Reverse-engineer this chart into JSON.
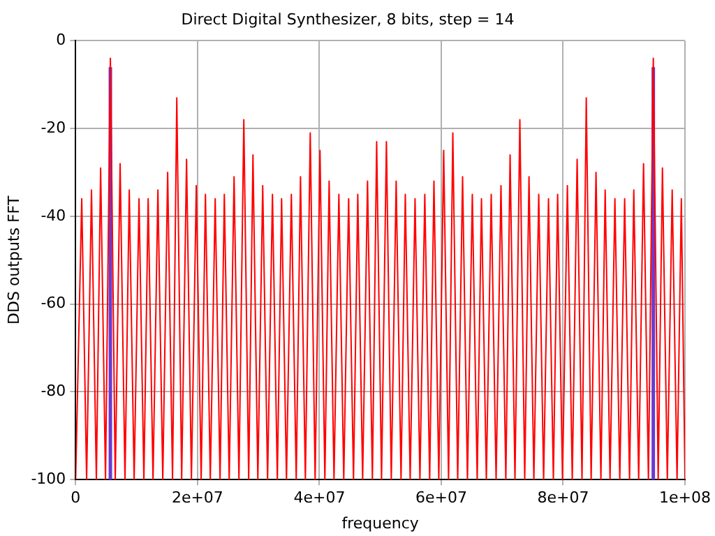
{
  "chart_data": {
    "type": "line",
    "title": "Direct Digital Synthesizer, 8 bits, step = 14",
    "xlabel": "frequency",
    "ylabel": "DDS outputs FFT",
    "xlim": [
      0,
      100000000
    ],
    "ylim": [
      -100,
      0
    ],
    "xticks": [
      0,
      {
        "value": 20000000,
        "label": "2e+07"
      },
      {
        "value": 40000000,
        "label": "4e+07"
      },
      {
        "value": 60000000,
        "label": "6e+07"
      },
      {
        "value": 80000000,
        "label": "8e+07"
      },
      {
        "value": 100000000,
        "label": "1e+08"
      }
    ],
    "yticks": [
      -100,
      -80,
      -60,
      -40,
      -20,
      0
    ],
    "grid": true,
    "legend": false,
    "marker": "none",
    "line_style": "solid",
    "series": [
      {
        "color": "#ff0000",
        "x": [
          0,
          1000000,
          1800000,
          2600000,
          3400000,
          4100000,
          4900000,
          5700000,
          6500000,
          7300000,
          8100000,
          8800000,
          9600000,
          10400000,
          11200000,
          11900000,
          12700000,
          13500000,
          14300000,
          15100000,
          15900000,
          16600000,
          17400000,
          18200000,
          19000000,
          19800000,
          20600000,
          21300000,
          22100000,
          22900000,
          23700000,
          24400000,
          25200000,
          26000000,
          26800000,
          27600000,
          28400000,
          29100000,
          29900000,
          30700000,
          31500000,
          32300000,
          33100000,
          33800000,
          34600000,
          35400000,
          36200000,
          36900000,
          37700000,
          38500000,
          39300000,
          40100000,
          40900000,
          41600000,
          42400000,
          43200000,
          44000000,
          44800000,
          45600000,
          46300000,
          47100000,
          47900000,
          48700000,
          49400000,
          50200000,
          51000000,
          51800000,
          52600000,
          53400000,
          54100000,
          54900000,
          55700000,
          56500000,
          57300000,
          58100000,
          58800000,
          59600000,
          60400000,
          61200000,
          61900000,
          62700000,
          63500000,
          64300000,
          65100000,
          65900000,
          66600000,
          67400000,
          68200000,
          69000000,
          69800000,
          70600000,
          71300000,
          72100000,
          72900000,
          73700000,
          74400000,
          75200000,
          76000000,
          76800000,
          77600000,
          78400000,
          79100000,
          79900000,
          80700000,
          81500000,
          82300000,
          83100000,
          83800000,
          84600000,
          85400000,
          86200000,
          86900000,
          87700000,
          88500000,
          89300000,
          90100000,
          90900000,
          91600000,
          92400000,
          93200000,
          94000000,
          94800000,
          95600000,
          96300000,
          97100000,
          97900000,
          98700000,
          99400000,
          100000000
        ],
        "values": [
          -100,
          -36,
          -100,
          -34,
          -100,
          -29,
          -100,
          -4,
          -100,
          -28,
          -100,
          -34,
          -100,
          -36,
          -100,
          -36,
          -100,
          -34,
          -100,
          -30,
          -100,
          -13,
          -100,
          -27,
          -100,
          -33,
          -100,
          -35,
          -100,
          -36,
          -100,
          -35,
          -100,
          -31,
          -100,
          -18,
          -100,
          -26,
          -100,
          -33,
          -100,
          -35,
          -100,
          -36,
          -100,
          -35,
          -100,
          -31,
          -100,
          -21,
          -100,
          -25,
          -100,
          -32,
          -100,
          -35,
          -100,
          -36,
          -100,
          -35,
          -100,
          -32,
          -100,
          -23,
          -100,
          -23,
          -100,
          -32,
          -100,
          -35,
          -100,
          -36,
          -100,
          -35,
          -100,
          -32,
          -100,
          -25,
          -100,
          -21,
          -100,
          -31,
          -100,
          -35,
          -100,
          -36,
          -100,
          -35,
          -100,
          -33,
          -100,
          -26,
          -100,
          -18,
          -100,
          -31,
          -100,
          -35,
          -100,
          -36,
          -100,
          -35,
          -100,
          -33,
          -100,
          -27,
          -100,
          -13,
          -100,
          -30,
          -100,
          -34,
          -100,
          -36,
          -100,
          -36,
          -100,
          -34,
          -100,
          -28,
          -100,
          -4,
          -100,
          -29,
          -100,
          -34,
          -100,
          -36,
          -100
        ]
      },
      {
        "color": "#6a3bd0",
        "x": [
          5700000,
          5700000
        ],
        "values": [
          -100,
          -6
        ]
      },
      {
        "color": "#6a3bd0",
        "x": [
          94800000,
          94800000
        ],
        "values": [
          -100,
          -6
        ]
      }
    ]
  }
}
